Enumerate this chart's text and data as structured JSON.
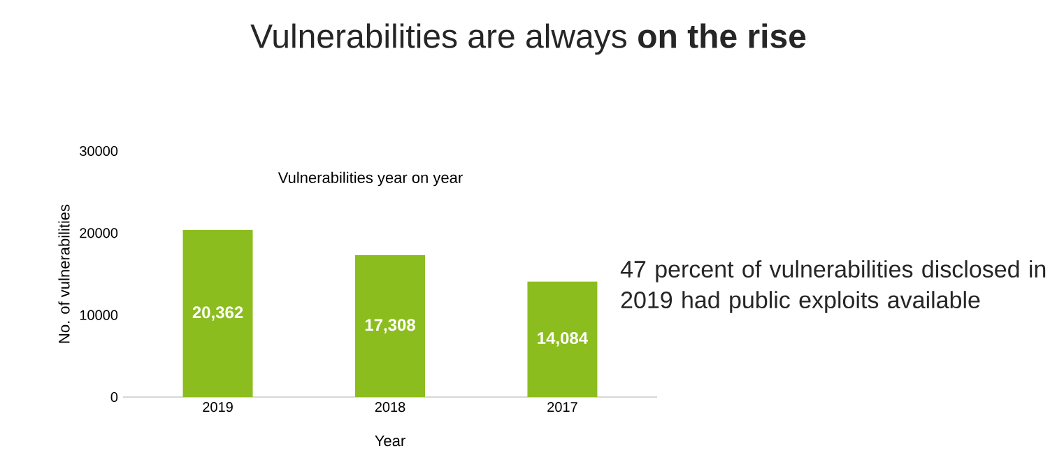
{
  "chart_data": {
    "type": "bar",
    "title": "Vulnerabilities are always **on the rise**",
    "subtitle": "Vulnerabilities year on year",
    "xlabel": "Year",
    "ylabel": "No. of vulnerabilities",
    "annotations": [
      "47 percent of  vulnerabilities disclosed in 2019 had public exploits available"
    ],
    "categories": [
      "2019",
      "2018",
      "2017"
    ],
    "values": [
      20362,
      17308,
      14084
    ],
    "value_labels": [
      "20,362",
      "17,308",
      "14,084"
    ],
    "color": "#8cbd1e",
    "ylim": [
      0,
      30000
    ],
    "yticks": [
      0,
      10000,
      20000,
      30000
    ]
  }
}
